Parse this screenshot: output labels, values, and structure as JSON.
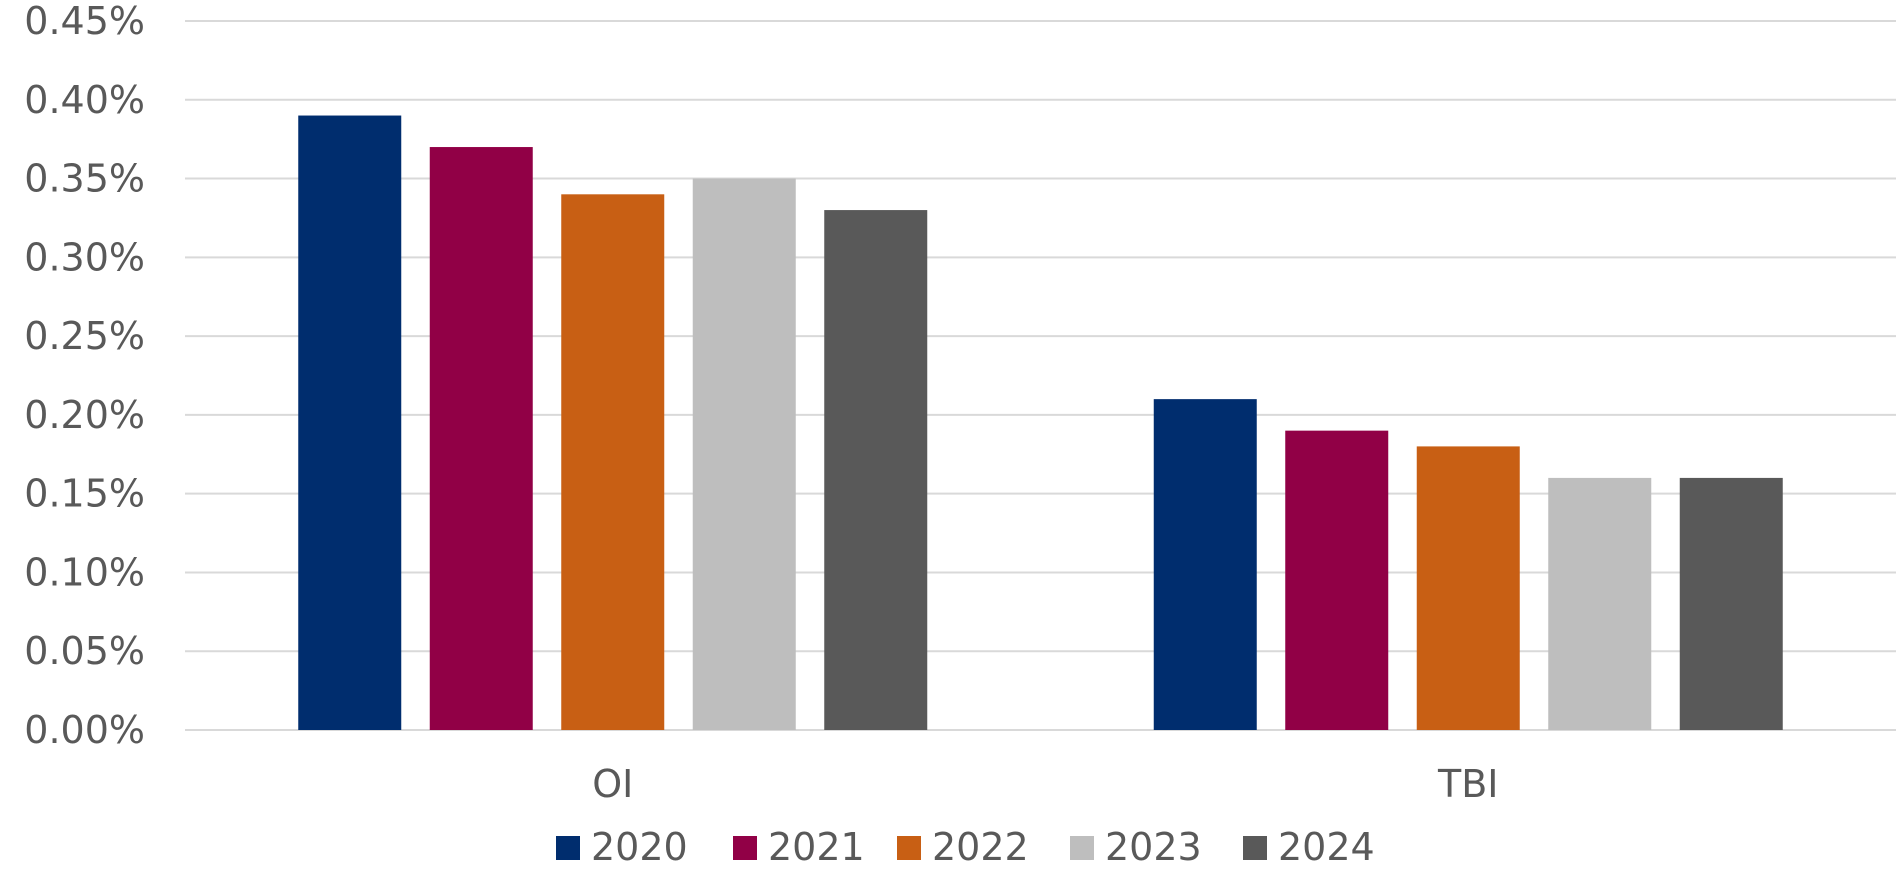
{
  "chart_data": {
    "type": "bar",
    "categories": [
      "OI",
      "TBI"
    ],
    "series": [
      {
        "name": "2020",
        "color": "#002D6E",
        "values": [
          0.39,
          0.21
        ]
      },
      {
        "name": "2021",
        "color": "#910046",
        "values": [
          0.37,
          0.19
        ]
      },
      {
        "name": "2022",
        "color": "#C85F14",
        "values": [
          0.34,
          0.18
        ]
      },
      {
        "name": "2023",
        "color": "#BEBEBE",
        "values": [
          0.35,
          0.16
        ]
      },
      {
        "name": "2024",
        "color": "#595959",
        "values": [
          0.33,
          0.16
        ]
      }
    ],
    "ylim": [
      0,
      0.45
    ],
    "yticks": [
      0,
      0.05,
      0.1,
      0.15,
      0.2,
      0.25,
      0.3,
      0.35,
      0.4,
      0.45
    ],
    "ytick_labels": [
      "0.00%",
      "0.05%",
      "0.10%",
      "0.15%",
      "0.20%",
      "0.25%",
      "0.30%",
      "0.35%",
      "0.40%",
      "0.45%"
    ],
    "unit": "%",
    "grid": true,
    "legend_position": "bottom",
    "gridline_color": "#D9D9D9",
    "text_color": "#595959"
  }
}
